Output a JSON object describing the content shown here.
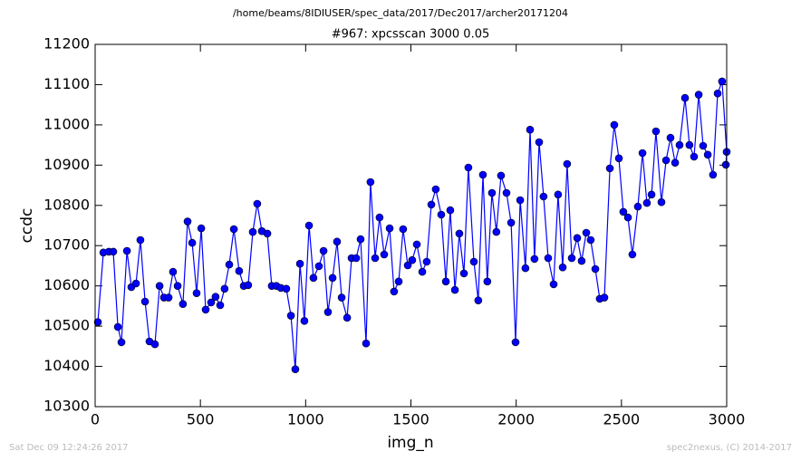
{
  "chart_data": {
    "type": "line",
    "title": "/home/beams/8IDIUSER/spec_data/2017/Dec2017/archer20171204",
    "subtitle": "#967: xpcsscan 3000 0.05",
    "xlabel": "img_n",
    "ylabel": "ccdc",
    "color": "#0000ff",
    "x": [
      13,
      39,
      65,
      86,
      108,
      125,
      151,
      172,
      194,
      215,
      237,
      258,
      284,
      306,
      327,
      349,
      370,
      392,
      417,
      439,
      461,
      482,
      504,
      525,
      551,
      572,
      594,
      615,
      637,
      659,
      684,
      706,
      727,
      749,
      770,
      792,
      818,
      839,
      861,
      882,
      908,
      930,
      951,
      973,
      994,
      1016,
      1037,
      1063,
      1085,
      1106,
      1128,
      1149,
      1171,
      1197,
      1218,
      1240,
      1261,
      1287,
      1308,
      1330,
      1351,
      1373,
      1399,
      1420,
      1442,
      1463,
      1485,
      1506,
      1528,
      1554,
      1575,
      1597,
      1618,
      1644,
      1666,
      1687,
      1709,
      1730,
      1752,
      1773,
      1799,
      1820,
      1842,
      1863,
      1885,
      1906,
      1928,
      1954,
      1976,
      1997,
      2019,
      2044,
      2066,
      2087,
      2109,
      2130,
      2152,
      2178,
      2199,
      2221,
      2242,
      2264,
      2290,
      2311,
      2333,
      2354,
      2376,
      2397,
      2419,
      2445,
      2466,
      2488,
      2509,
      2531,
      2552,
      2578,
      2600,
      2621,
      2643,
      2664,
      2690,
      2712,
      2733,
      2755,
      2776,
      2802,
      2823,
      2845,
      2867,
      2888,
      2910,
      2935,
      2957,
      2978,
      3000,
      2996
    ],
    "values": [
      10510,
      10683,
      10685,
      10685,
      10498,
      10460,
      10687,
      10597,
      10606,
      10714,
      10561,
      10462,
      10455,
      10600,
      10571,
      10571,
      10635,
      10600,
      10555,
      10760,
      10707,
      10582,
      10743,
      10541,
      10559,
      10573,
      10552,
      10593,
      10653,
      10741,
      10637,
      10600,
      10602,
      10734,
      10804,
      10736,
      10730,
      10600,
      10600,
      10595,
      10593,
      10526,
      10393,
      10655,
      10513,
      10750,
      10620,
      10649,
      10687,
      10535,
      10620,
      10710,
      10571,
      10521,
      10669,
      10669,
      10716,
      10457,
      10858,
      10669,
      10770,
      10678,
      10743,
      10586,
      10611,
      10741,
      10651,
      10664,
      10703,
      10635,
      10660,
      10802,
      10840,
      10777,
      10611,
      10788,
      10590,
      10730,
      10631,
      10894,
      10660,
      10564,
      10876,
      10611,
      10831,
      10734,
      10874,
      10831,
      10757,
      10460,
      10813,
      10644,
      10988,
      10667,
      10957,
      10822,
      10669,
      10604,
      10827,
      10646,
      10903,
      10669,
      10719,
      10662,
      10732,
      10714,
      10642,
      10568,
      10571,
      10892,
      11000,
      10917,
      10784,
      10770,
      10678,
      10797,
      10930,
      10806,
      10827,
      10984,
      10808,
      10912,
      10968,
      10906,
      10950,
      11067,
      10950,
      10921,
      11075,
      10948,
      10926,
      10876,
      11078,
      11108,
      10933,
      10901
    ],
    "xlim": [
      0,
      3000
    ],
    "xticks": [
      0,
      500,
      1000,
      1500,
      2000,
      2500,
      3000
    ],
    "ylim": [
      10300,
      11200
    ],
    "yticks": [
      10300,
      10400,
      10500,
      10600,
      10700,
      10800,
      10900,
      11000,
      11100,
      11200
    ]
  },
  "footer_left": "Sat Dec 09 12:24:26 2017",
  "footer_right": "spec2nexus, (C) 2014-2017"
}
